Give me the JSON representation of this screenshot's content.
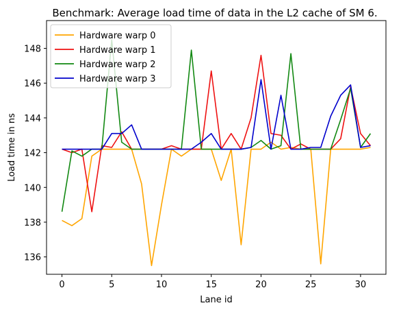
{
  "chart_data": {
    "type": "line",
    "title": "Benchmark: Average load time of data in the L2 cache of SM 6.",
    "xlabel": "Lane id",
    "ylabel": "Load time in ns",
    "xlim": [
      -1.55,
      32.55
    ],
    "ylim": [
      135.0,
      149.6
    ],
    "xticks": [
      0,
      5,
      10,
      15,
      20,
      25,
      30
    ],
    "yticks": [
      136,
      138,
      140,
      142,
      144,
      146,
      148
    ],
    "grid": false,
    "legend_position": "top-left",
    "x": [
      0,
      1,
      2,
      3,
      4,
      5,
      6,
      7,
      8,
      9,
      10,
      11,
      12,
      13,
      14,
      15,
      16,
      17,
      18,
      19,
      20,
      21,
      22,
      23,
      24,
      25,
      26,
      27,
      28,
      29,
      30,
      31
    ],
    "series": [
      {
        "name": "Hardware warp 0",
        "color": "#ffa500",
        "values": [
          138.1,
          137.8,
          138.2,
          141.8,
          142.2,
          142.2,
          142.2,
          142.2,
          140.2,
          135.5,
          139.0,
          142.2,
          141.8,
          142.2,
          142.2,
          142.2,
          140.4,
          142.2,
          136.7,
          142.2,
          142.2,
          142.6,
          142.2,
          142.3,
          142.2,
          142.2,
          135.6,
          142.2,
          142.2,
          142.2,
          142.2,
          142.3
        ]
      },
      {
        "name": "Hardware warp 1",
        "color": "#ee1111",
        "values": [
          142.2,
          142.0,
          142.2,
          138.6,
          142.4,
          142.3,
          143.2,
          142.2,
          142.2,
          142.2,
          142.2,
          142.4,
          142.2,
          142.2,
          142.2,
          146.7,
          142.2,
          143.1,
          142.2,
          144.0,
          147.6,
          143.1,
          143.0,
          142.2,
          142.5,
          142.2,
          142.2,
          142.2,
          142.8,
          145.8,
          143.1,
          142.4
        ]
      },
      {
        "name": "Hardware warp 2",
        "color": "#118811",
        "values": [
          138.6,
          142.1,
          141.8,
          142.2,
          142.2,
          148.5,
          142.6,
          142.2,
          142.2,
          142.2,
          142.2,
          142.2,
          142.2,
          147.9,
          142.2,
          142.2,
          142.2,
          142.2,
          142.2,
          142.3,
          142.7,
          142.2,
          142.4,
          147.7,
          142.2,
          142.2,
          142.2,
          142.2,
          143.9,
          145.7,
          142.3,
          143.1
        ]
      },
      {
        "name": "Hardware warp 3",
        "color": "#0000cc",
        "values": [
          142.2,
          142.2,
          142.2,
          142.2,
          142.2,
          143.1,
          143.1,
          143.6,
          142.2,
          142.2,
          142.2,
          142.2,
          142.2,
          142.2,
          142.6,
          143.1,
          142.2,
          142.2,
          142.2,
          142.3,
          146.2,
          142.2,
          145.3,
          142.2,
          142.2,
          142.3,
          142.3,
          144.1,
          145.3,
          145.9,
          142.3,
          142.4
        ]
      }
    ]
  }
}
